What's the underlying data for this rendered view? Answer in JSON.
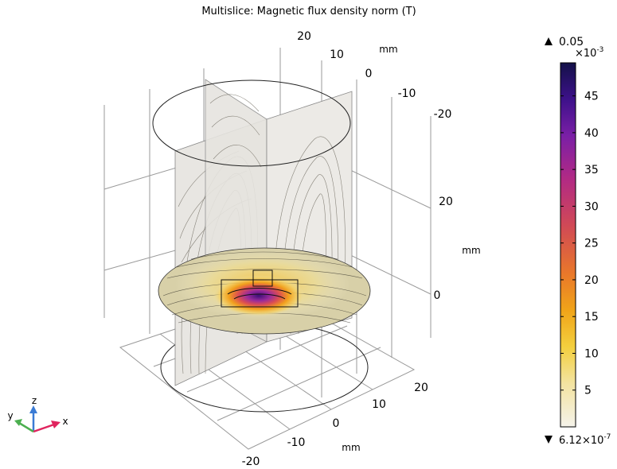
{
  "title": "Multislice: Magnetic flux density norm (T)",
  "chart_data": {
    "type": "heatmap",
    "title": "Multislice: Magnetic flux density norm (T)",
    "quantity": "Magnetic flux density norm",
    "unit": "T",
    "axes": {
      "x": {
        "label": "mm",
        "ticks": [
          "20",
          "10",
          "0",
          "-10",
          "-20"
        ]
      },
      "y": {
        "label": "mm",
        "ticks": [
          "20",
          "10",
          "0",
          "-10",
          "-20"
        ]
      },
      "z": {
        "label": "mm",
        "ticks": [
          "20",
          "0"
        ]
      }
    },
    "colorbar": {
      "max_label": "0.05",
      "min_label": "6.12×10",
      "min_exponent": "-7",
      "scale_factor": "×10",
      "scale_exponent": "-3",
      "ticks": [
        5,
        10,
        15,
        20,
        25,
        30,
        35,
        40,
        45
      ],
      "range_scaled": [
        0.000612,
        49.5
      ],
      "colormap": [
        "#f5f3ea",
        "#f3dc6a",
        "#f0ad18",
        "#e76e2d",
        "#c9356a",
        "#8e22a3",
        "#4a1090",
        "#131148"
      ]
    },
    "axis_triad": {
      "x": "x",
      "y": "y",
      "z": "z"
    }
  }
}
